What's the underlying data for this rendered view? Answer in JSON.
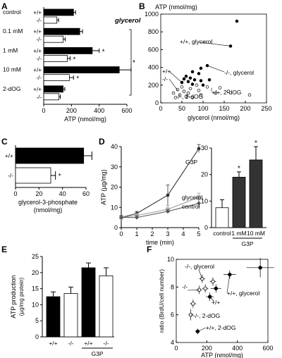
{
  "chart_data": [
    {
      "panel": "A",
      "type": "bar",
      "orientation": "horizontal",
      "xlabel": "ATP (nmol/mg)",
      "xlim": [
        0,
        600
      ],
      "xticks": [
        0,
        200,
        400,
        600
      ],
      "annotation": "glycerol",
      "groups": [
        {
          "label": "control",
          "bars": [
            {
              "genotype": "+/+",
              "value": 215,
              "err": 15,
              "fill": "#000000"
            },
            {
              "genotype": "-/-",
              "value": 95,
              "err": 12,
              "fill": "#ffffff"
            }
          ]
        },
        {
          "label": "0.1 mM",
          "bars": [
            {
              "genotype": "+/+",
              "value": 260,
              "err": 20,
              "fill": "#000000"
            },
            {
              "genotype": "-/-",
              "value": 140,
              "err": 15,
              "fill": "#ffffff"
            }
          ]
        },
        {
          "label": "1 mM",
          "bars": [
            {
              "genotype": "+/+",
              "value": 350,
              "err": 50,
              "fill": "#000000",
              "sig": "*"
            },
            {
              "genotype": "-/-",
              "value": 170,
              "err": 20,
              "fill": "#ffffff",
              "sig": "*"
            }
          ]
        },
        {
          "label": "10 mM",
          "bars": [
            {
              "genotype": "+/+",
              "value": 545,
              "err": 85,
              "fill": "#000000"
            },
            {
              "genotype": "-/-",
              "value": 185,
              "err": 30,
              "fill": "#ffffff",
              "sig": "*"
            }
          ]
        },
        {
          "label": "2-dOG",
          "bars": [
            {
              "genotype": "+/+",
              "value": 140,
              "err": 12,
              "fill": "#000000"
            },
            {
              "genotype": "-/-",
              "value": 110,
              "err": 10,
              "fill": "#ffffff"
            }
          ]
        }
      ],
      "bracket_sig": "*"
    },
    {
      "panel": "B",
      "type": "scatter",
      "xlabel": "glycerol (nmol/mg)",
      "ylabel": "ATP (nmol/mg)",
      "xlim": [
        0,
        250
      ],
      "ylim": [
        0,
        1000
      ],
      "xticks": [
        0,
        50,
        100,
        150,
        200,
        250
      ],
      "yticks": [
        0,
        200,
        400,
        600,
        800,
        1000
      ],
      "series": [
        {
          "filled": true,
          "points": [
            [
              180,
              920
            ],
            [
              165,
              640
            ],
            [
              110,
              420
            ],
            [
              95,
              390
            ],
            [
              75,
              350
            ],
            [
              90,
              330
            ],
            [
              60,
              300
            ],
            [
              70,
              280
            ],
            [
              55,
              270
            ],
            [
              80,
              260
            ],
            [
              95,
              250
            ],
            [
              65,
              240
            ],
            [
              50,
              230
            ],
            [
              75,
              210
            ],
            [
              100,
              200
            ],
            [
              115,
              260
            ]
          ]
        },
        {
          "filled": false,
          "points": [
            [
              40,
              150
            ],
            [
              55,
              130
            ],
            [
              70,
              160
            ],
            [
              65,
              110
            ],
            [
              90,
              140
            ],
            [
              110,
              180
            ],
            [
              140,
              170
            ],
            [
              130,
              110
            ],
            [
              160,
              130
            ],
            [
              210,
              90
            ],
            [
              45,
              90
            ],
            [
              60,
              70
            ],
            [
              75,
              60
            ],
            [
              95,
              90
            ],
            [
              35,
              60
            ],
            [
              30,
              110
            ],
            [
              50,
              180
            ],
            [
              85,
              200
            ]
          ]
        }
      ],
      "annotations": [
        "+/+, glycerol",
        "-/-, glycerol",
        "+/+, 2-dOG",
        "-/-, 2-dOG",
        "+/+",
        "-/-"
      ]
    },
    {
      "panel": "C",
      "type": "bar",
      "orientation": "horizontal",
      "xlabel": "glycerol-3-phosphate\n(nmol/mg)",
      "xlim": [
        0,
        60
      ],
      "xticks": [
        0,
        20,
        40,
        60
      ],
      "bars": [
        {
          "label": "+/+",
          "value": 58,
          "err": 7,
          "fill": "#000000"
        },
        {
          "label": "-/-",
          "value": 30,
          "err": 4,
          "fill": "#ffffff",
          "sig": "*"
        }
      ]
    },
    {
      "panel": "D",
      "type": "line",
      "xlabel": "time (min)",
      "ylabel": "ATP (µg/mg)",
      "xlim": [
        0,
        5
      ],
      "ylim": [
        0,
        40
      ],
      "xticks": [
        0,
        1,
        2,
        3,
        4,
        5
      ],
      "yticks": [
        0,
        10,
        20,
        30,
        40
      ],
      "series": [
        {
          "name": "G3P",
          "color": "#333333",
          "marker": "circle",
          "x": [
            0,
            1,
            3,
            5
          ],
          "y": [
            5,
            7,
            16,
            39
          ],
          "err": [
            1,
            1,
            5,
            2
          ]
        },
        {
          "name": "glycerol",
          "color": "#999999",
          "marker": "square",
          "x": [
            0,
            1,
            3,
            5
          ],
          "y": [
            5,
            6,
            9,
            15
          ],
          "err": [
            1,
            1,
            2,
            2
          ]
        },
        {
          "name": "control",
          "color": "#555555",
          "marker": "diamond",
          "x": [
            0,
            1,
            3,
            5
          ],
          "y": [
            5,
            5,
            8,
            12
          ],
          "err": [
            1,
            1,
            1,
            2
          ]
        }
      ]
    },
    {
      "panel": "D-inset",
      "type": "bar",
      "ylim": [
        0,
        30
      ],
      "yticks": [
        0,
        10,
        20,
        30
      ],
      "categories": [
        "control",
        "1 mM",
        "10 mM"
      ],
      "group_label": "G3P",
      "bars": [
        {
          "value": 7.5,
          "err": 3,
          "fill": "#ffffff"
        },
        {
          "value": 19,
          "err": 2,
          "fill": "#333333",
          "sig": "*"
        },
        {
          "value": 25.5,
          "err": 5,
          "fill": "#333333",
          "sig": "*"
        }
      ]
    },
    {
      "panel": "E",
      "type": "bar",
      "ylabel": "ATP production\n(µg/mg protein)",
      "ylim": [
        0,
        25
      ],
      "yticks": [
        0,
        5,
        10,
        15,
        20,
        25
      ],
      "categories": [
        "+/+",
        "-/-",
        "+/+",
        "-/-"
      ],
      "group_label": "G3P",
      "bars": [
        {
          "value": 12.5,
          "err": 1.5,
          "fill": "#000000"
        },
        {
          "value": 13.5,
          "err": 2,
          "fill": "#ffffff"
        },
        {
          "value": 21.5,
          "err": 1.5,
          "fill": "#000000"
        },
        {
          "value": 19,
          "err": 2.5,
          "fill": "#ffffff"
        }
      ]
    },
    {
      "panel": "F",
      "type": "scatter",
      "xlabel": "ATP (nmol/mg)",
      "ylabel": "ratio (BrdU/cell number)",
      "xlim": [
        0,
        600
      ],
      "ylim": [
        4,
        10
      ],
      "xticks": [
        0,
        200,
        400,
        600
      ],
      "yticks": [
        4,
        6,
        8,
        10
      ],
      "points": [
        {
          "x": 550,
          "y": 9.4,
          "xerr": 90,
          "yerr": 0.7,
          "filled": true
        },
        {
          "x": 350,
          "y": 8.9,
          "xerr": 40,
          "yerr": 0.3,
          "filled": true
        },
        {
          "x": 260,
          "y": 7.9,
          "xerr": 35,
          "yerr": 0.3,
          "filled": true
        },
        {
          "x": 220,
          "y": 7.3,
          "xerr": 25,
          "yerr": 0.3,
          "filled": true
        },
        {
          "x": 140,
          "y": 4.8,
          "xerr": 15,
          "yerr": 0.2,
          "filled": true
        },
        {
          "x": 170,
          "y": 8.6,
          "xerr": 20,
          "yerr": 0.3,
          "filled": false
        },
        {
          "x": 190,
          "y": 7.9,
          "xerr": 20,
          "yerr": 0.3,
          "filled": false
        },
        {
          "x": 240,
          "y": 8.4,
          "xerr": 20,
          "yerr": 0.3,
          "filled": false
        },
        {
          "x": 150,
          "y": 7.8,
          "xerr": 20,
          "yerr": 0.3,
          "filled": false
        },
        {
          "x": 110,
          "y": 6.8,
          "xerr": 20,
          "yerr": 0.3,
          "filled": false
        },
        {
          "x": 95,
          "y": 6.0,
          "xerr": 15,
          "yerr": 0.4,
          "filled": false
        }
      ],
      "annotations": [
        "-/-, glycerol",
        "+/+, glycerol",
        "-/-",
        "+/+",
        "-/-, 2-dOG",
        "+/+, 2-dOG"
      ]
    }
  ]
}
